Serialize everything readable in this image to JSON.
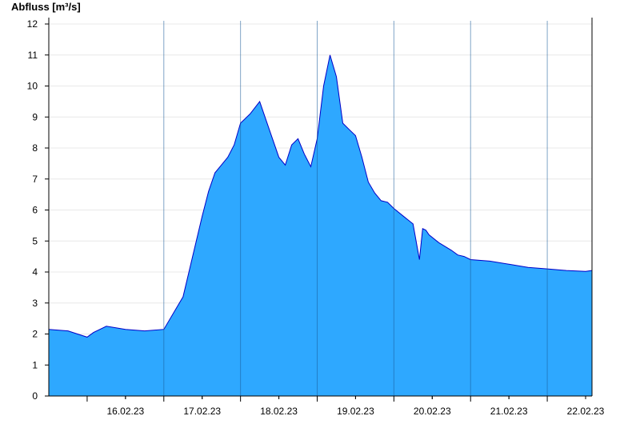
{
  "chart_data": {
    "type": "area",
    "title": "",
    "xlabel": "",
    "ylabel": "Abfluss [m³/s]",
    "ylim": [
      0,
      12
    ],
    "xlim": [
      "2023-02-15T12:00",
      "2023-02-22T14:00"
    ],
    "grid": true,
    "legend": "none",
    "x_tick_labels": [
      "16.02.23",
      "17.02.23",
      "18.02.23",
      "19.02.23",
      "20.02.23",
      "21.02.23",
      "22.02.23"
    ],
    "y_tick_labels": [
      "0",
      "1",
      "2",
      "3",
      "4",
      "5",
      "6",
      "7",
      "8",
      "9",
      "10",
      "11",
      "12"
    ],
    "colors": {
      "fill": "#2ea8ff",
      "line": "#0000c8",
      "grid": "#e8e8e8"
    },
    "series": [
      {
        "x": [
          "2023-02-15T12:00",
          "2023-02-15T18:00",
          "2023-02-16T00:00",
          "2023-02-16T02:00",
          "2023-02-16T06:00",
          "2023-02-16T09:00",
          "2023-02-16T12:00",
          "2023-02-16T18:00",
          "2023-02-17T00:00",
          "2023-02-17T06:00",
          "2023-02-17T12:00",
          "2023-02-17T14:00",
          "2023-02-17T16:00",
          "2023-02-17T18:00",
          "2023-02-17T20:00",
          "2023-02-17T22:00",
          "2023-02-18T00:00",
          "2023-02-18T03:00",
          "2023-02-18T06:00",
          "2023-02-18T09:00",
          "2023-02-18T12:00",
          "2023-02-18T14:00",
          "2023-02-18T16:00",
          "2023-02-18T18:00",
          "2023-02-18T20:00",
          "2023-02-18T22:00",
          "2023-02-19T00:00",
          "2023-02-19T02:00",
          "2023-02-19T04:00",
          "2023-02-19T06:00",
          "2023-02-19T08:00",
          "2023-02-19T10:00",
          "2023-02-19T12:00",
          "2023-02-19T14:00",
          "2023-02-19T16:00",
          "2023-02-19T18:00",
          "2023-02-19T20:00",
          "2023-02-19T22:00",
          "2023-02-20T00:00",
          "2023-02-20T03:00",
          "2023-02-20T06:00",
          "2023-02-20T08:00",
          "2023-02-20T09:00",
          "2023-02-20T10:00",
          "2023-02-20T11:00",
          "2023-02-20T14:00",
          "2023-02-20T18:00",
          "2023-02-20T20:00",
          "2023-02-20T22:00",
          "2023-02-21T00:00",
          "2023-02-21T06:00",
          "2023-02-21T12:00",
          "2023-02-21T18:00",
          "2023-02-22T00:00",
          "2023-02-22T06:00",
          "2023-02-22T12:00",
          "2023-02-22T14:00"
        ],
        "y": [
          2.15,
          2.1,
          1.9,
          2.05,
          2.25,
          2.2,
          2.15,
          2.1,
          2.15,
          3.2,
          5.8,
          6.6,
          7.2,
          7.45,
          7.7,
          8.1,
          8.8,
          9.1,
          9.5,
          8.6,
          7.7,
          7.45,
          8.1,
          8.3,
          7.8,
          7.4,
          8.3,
          10.0,
          11.0,
          10.3,
          8.8,
          8.6,
          8.4,
          7.7,
          6.9,
          6.55,
          6.3,
          6.25,
          6.05,
          5.8,
          5.55,
          4.4,
          5.4,
          5.35,
          5.2,
          4.95,
          4.7,
          4.55,
          4.5,
          4.4,
          4.35,
          4.25,
          4.15,
          4.1,
          4.05,
          4.02,
          4.05
        ]
      }
    ]
  }
}
